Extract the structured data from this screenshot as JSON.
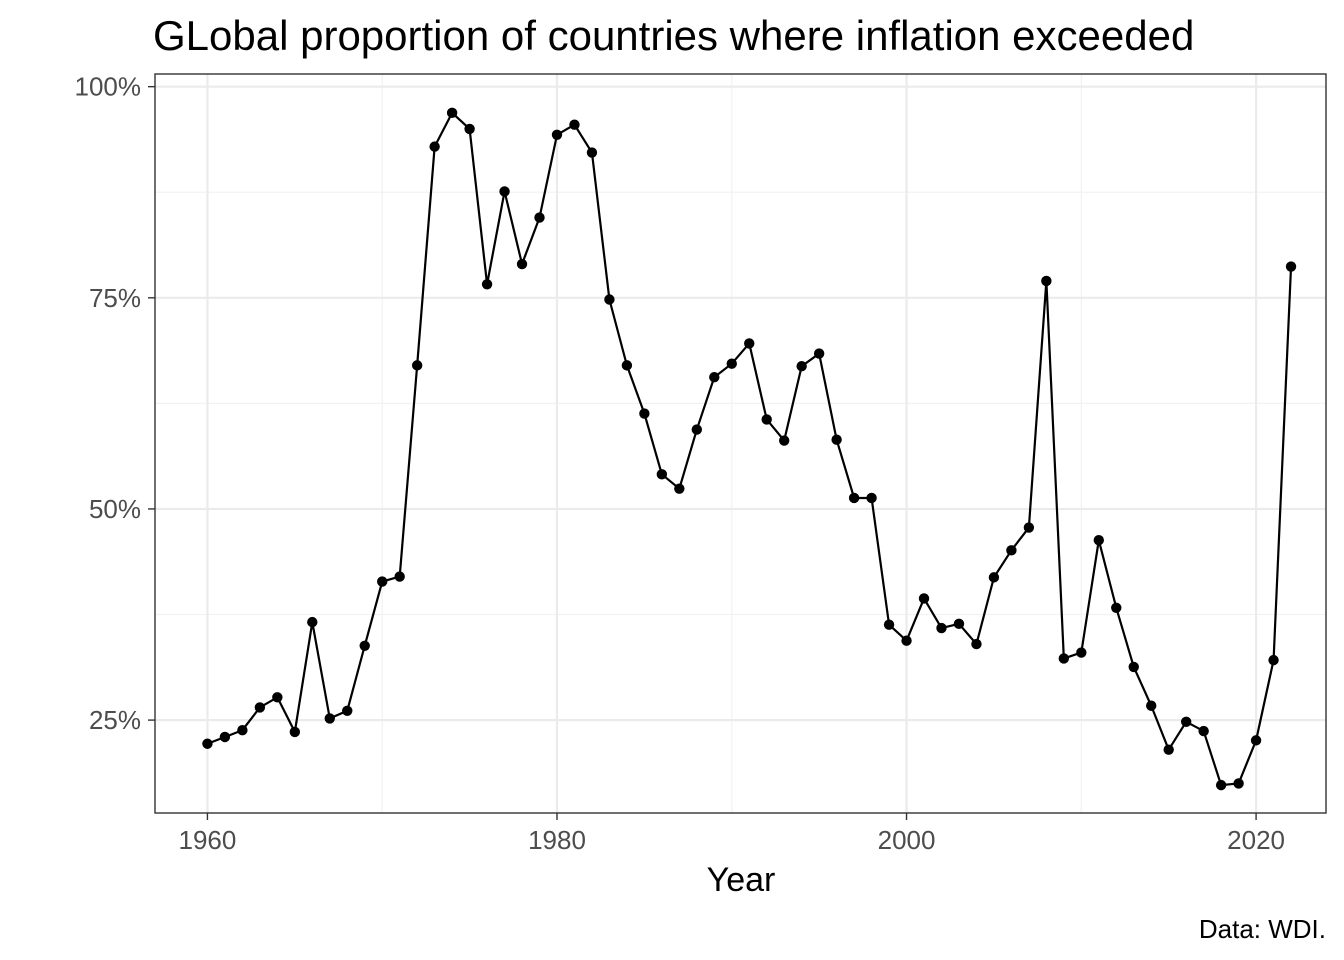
{
  "chart_data": {
    "type": "line",
    "title": "GLobal proportion of countries where inflation exceeded",
    "xlabel": "Year",
    "ylabel": "",
    "caption": "Data: WDI.",
    "xlim": [
      1957,
      2024
    ],
    "ylim": [
      14,
      101.5
    ],
    "x_ticks": [
      1960,
      1980,
      2000,
      2020
    ],
    "x_tick_labels": [
      "1960",
      "1980",
      "2000",
      "2020"
    ],
    "x_minor": [
      1970,
      1990,
      2010
    ],
    "y_ticks": [
      25,
      50,
      75,
      100
    ],
    "y_tick_labels": [
      "25%",
      "50%",
      "75%",
      "100%"
    ],
    "y_minor": [
      37.5,
      62.5,
      87.5
    ],
    "grid": true,
    "legend": "none",
    "line_color": "#000000",
    "x": [
      1960,
      1961,
      1962,
      1963,
      1964,
      1965,
      1966,
      1967,
      1968,
      1969,
      1970,
      1971,
      1972,
      1973,
      1974,
      1975,
      1976,
      1977,
      1978,
      1979,
      1980,
      1981,
      1982,
      1983,
      1984,
      1985,
      1986,
      1987,
      1988,
      1989,
      1990,
      1991,
      1992,
      1993,
      1994,
      1995,
      1996,
      1997,
      1998,
      1999,
      2000,
      2001,
      2002,
      2003,
      2004,
      2005,
      2006,
      2007,
      2008,
      2009,
      2010,
      2011,
      2012,
      2013,
      2014,
      2015,
      2016,
      2017,
      2018,
      2019,
      2020,
      2021,
      2022
    ],
    "y": [
      22.2,
      23.0,
      23.8,
      26.5,
      27.7,
      23.6,
      36.6,
      25.2,
      26.1,
      33.8,
      41.4,
      42.0,
      67.0,
      92.9,
      96.9,
      95.0,
      76.6,
      87.6,
      79.0,
      84.5,
      94.3,
      95.5,
      92.2,
      74.8,
      67.0,
      61.3,
      54.1,
      52.4,
      59.4,
      65.6,
      67.2,
      69.6,
      60.6,
      58.1,
      66.9,
      68.4,
      58.2,
      51.3,
      51.3,
      36.3,
      34.4,
      39.4,
      35.9,
      36.4,
      34.0,
      41.9,
      45.1,
      47.8,
      77.0,
      32.3,
      33.0,
      46.3,
      38.3,
      31.3,
      26.7,
      21.5,
      24.8,
      23.7,
      17.3,
      17.5,
      22.6,
      32.1,
      78.7
    ]
  }
}
